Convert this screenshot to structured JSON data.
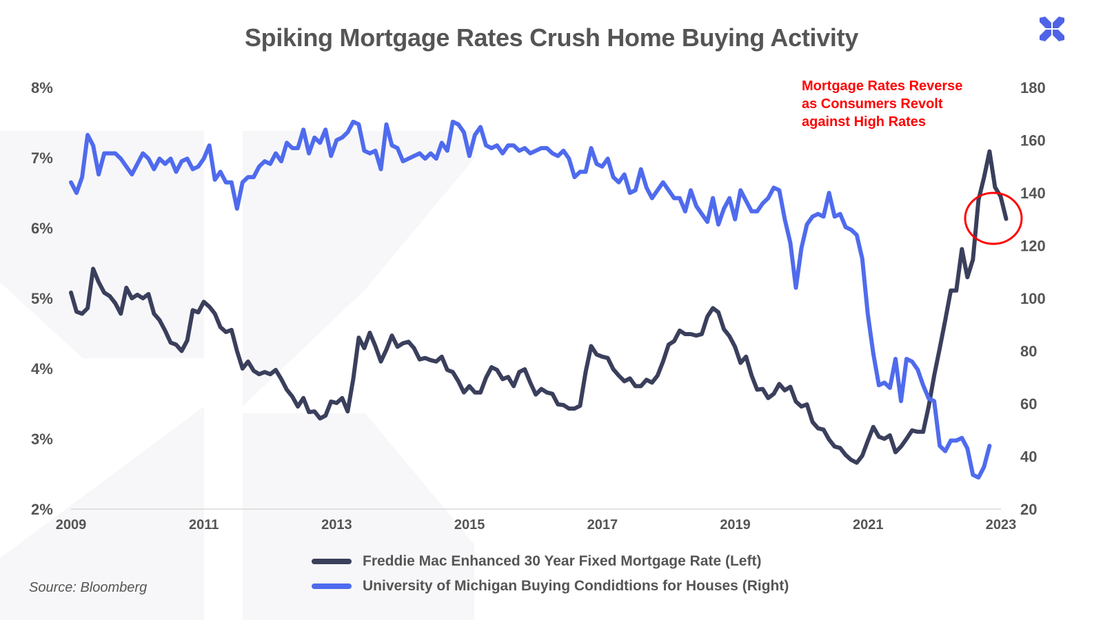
{
  "header": {
    "title": "Spiking Mortgage Rates Crush Home Buying Activity",
    "logo_icon": "x-cross-logo-icon",
    "logo_color": "#4f63e6"
  },
  "annotation": {
    "text": "Mortgage Rates Reverse\nas Consumers Revolt\nagainst High Rates",
    "color": "#ff0000"
  },
  "source": "Source: Bloomberg",
  "chart_data": {
    "type": "line",
    "title": "Spiking Mortgage Rates Crush Home Buying Activity",
    "xlabel": "",
    "ylabel_left": "",
    "ylabel_right": "",
    "xlim": [
      2009,
      2023
    ],
    "ylim_left": [
      2,
      8
    ],
    "ylim_right": [
      20,
      180
    ],
    "x_ticks": [
      "2009",
      "2011",
      "2013",
      "2015",
      "2017",
      "2019",
      "2021",
      "2023"
    ],
    "y_ticks_left": [
      "2%",
      "3%",
      "4%",
      "5%",
      "6%",
      "7%",
      "8%"
    ],
    "y_ticks_right": [
      "20",
      "40",
      "60",
      "80",
      "100",
      "120",
      "140",
      "160",
      "180"
    ],
    "grid": false,
    "legend_position": "bottom",
    "series": [
      {
        "name": "Freddie Mac Enhanced 30 Year Fixed Mortgage Rate (Left)",
        "axis": "left",
        "color": "#3a3f5c",
        "start": 2009.0,
        "step": 0.0833,
        "values": [
          5.08,
          4.81,
          4.78,
          4.86,
          5.42,
          5.23,
          5.08,
          5.03,
          4.93,
          4.78,
          5.15,
          5.0,
          5.05,
          5.0,
          5.06,
          4.78,
          4.69,
          4.54,
          4.37,
          4.34,
          4.25,
          4.4,
          4.83,
          4.8,
          4.95,
          4.88,
          4.78,
          4.59,
          4.52,
          4.55,
          4.25,
          4.0,
          4.1,
          3.97,
          3.92,
          3.95,
          3.92,
          3.98,
          3.85,
          3.7,
          3.6,
          3.46,
          3.58,
          3.38,
          3.39,
          3.29,
          3.33,
          3.53,
          3.51,
          3.58,
          3.39,
          3.85,
          4.44,
          4.29,
          4.51,
          4.32,
          4.1,
          4.27,
          4.47,
          4.31,
          4.36,
          4.38,
          4.29,
          4.13,
          4.15,
          4.12,
          4.1,
          4.17,
          3.98,
          3.95,
          3.82,
          3.66,
          3.75,
          3.66,
          3.66,
          3.87,
          4.02,
          3.98,
          3.85,
          3.88,
          3.75,
          3.95,
          3.99,
          3.8,
          3.63,
          3.71,
          3.66,
          3.64,
          3.49,
          3.48,
          3.43,
          3.43,
          3.47,
          3.95,
          4.32,
          4.2,
          4.17,
          4.15,
          3.99,
          3.9,
          3.82,
          3.86,
          3.75,
          3.75,
          3.84,
          3.8,
          3.9,
          4.1,
          4.34,
          4.39,
          4.54,
          4.49,
          4.49,
          4.47,
          4.49,
          4.74,
          4.86,
          4.8,
          4.56,
          4.46,
          4.31,
          4.08,
          4.17,
          3.9,
          3.7,
          3.71,
          3.58,
          3.64,
          3.78,
          3.69,
          3.74,
          3.53,
          3.46,
          3.49,
          3.24,
          3.15,
          3.13,
          2.99,
          2.89,
          2.87,
          2.77,
          2.7,
          2.66,
          2.76,
          2.97,
          3.17,
          3.03,
          3.0,
          3.05,
          2.81,
          2.89,
          3.0,
          3.12,
          3.1,
          3.1,
          3.46,
          3.9,
          4.29,
          4.69,
          5.11,
          5.11,
          5.7,
          5.3,
          5.55,
          6.4,
          6.72,
          7.09,
          6.58,
          6.45,
          6.13
        ]
      },
      {
        "name": "University of Michigan Buying Condidtions for Houses (Right)",
        "axis": "right",
        "color": "#4f6bed",
        "start": 2009.0,
        "step": 0.0833,
        "values": [
          144,
          140,
          146,
          162,
          158,
          147,
          155,
          155,
          155,
          153,
          150,
          147,
          151,
          155,
          153,
          149,
          153,
          151,
          153,
          148,
          152,
          153,
          149,
          150,
          153,
          158,
          145,
          148,
          144,
          144,
          134,
          144,
          146,
          146,
          150,
          152,
          151,
          155,
          152,
          159,
          157,
          157,
          164,
          155,
          161,
          159,
          164,
          154,
          160,
          161,
          163,
          167,
          166,
          156,
          155,
          156,
          149,
          166,
          158,
          157,
          152,
          153,
          154,
          155,
          153,
          155,
          153,
          159,
          156,
          167,
          166,
          163,
          154,
          162,
          165,
          158,
          157,
          158,
          155,
          158,
          158,
          156,
          157,
          155,
          156,
          157,
          157,
          155,
          154,
          156,
          153,
          146,
          148,
          148,
          157,
          151,
          150,
          153,
          146,
          144,
          147,
          140,
          141,
          149,
          142,
          138,
          141,
          144,
          141,
          138,
          138,
          133,
          141,
          135,
          132,
          129,
          138,
          128,
          134,
          138,
          130,
          141,
          137,
          133,
          133,
          136,
          138,
          142,
          141,
          130,
          121,
          104,
          119,
          128,
          131,
          132,
          131,
          140,
          131,
          132,
          127,
          126,
          124,
          115,
          94,
          79,
          67,
          68,
          66,
          77,
          61,
          77,
          76,
          73,
          67,
          62,
          61,
          44,
          42,
          46,
          46,
          47,
          43,
          33,
          32,
          36,
          44
        ]
      }
    ]
  },
  "legend": {
    "items": [
      {
        "label": "Freddie Mac Enhanced 30 Year Fixed Mortgage Rate (Left)",
        "color": "#3a3f5c"
      },
      {
        "label": "University of Michigan Buying Condidtions for Houses (Right)",
        "color": "#4f6bed"
      }
    ]
  }
}
